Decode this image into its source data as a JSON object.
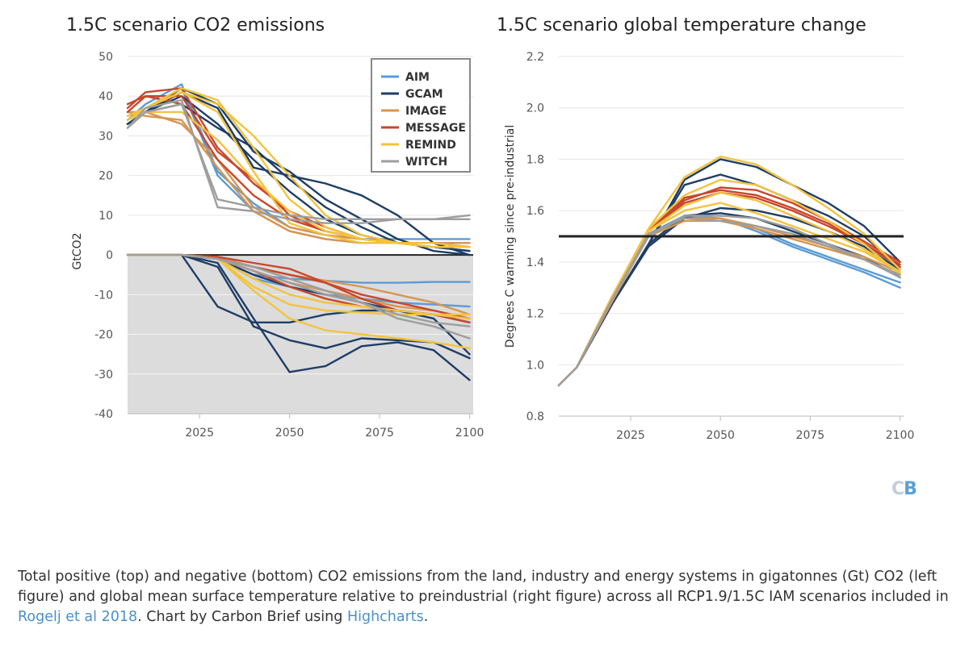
{
  "chart_data": [
    {
      "type": "line",
      "title": "1.5C scenario CO2 emissions",
      "xlabel": "",
      "ylabel": "GtCO2",
      "xlim": [
        2005,
        2101
      ],
      "ylim": [
        -40,
        50
      ],
      "xticks": [
        2025,
        2050,
        2075,
        2100
      ],
      "yticks": [
        50,
        40,
        30,
        20,
        10,
        0,
        -10,
        -20,
        -30,
        -40
      ],
      "grid": true,
      "legend": "top-right",
      "legend_items": [
        {
          "name": "AIM",
          "color": "#5b9bd5"
        },
        {
          "name": "GCAM",
          "color": "#1f3e66"
        },
        {
          "name": "IMAGE",
          "color": "#d89550"
        },
        {
          "name": "MESSAGE",
          "color": "#c8472d"
        },
        {
          "name": "REMIND",
          "color": "#f3c33e"
        },
        {
          "name": "WITCH",
          "color": "#9e9e9e"
        }
      ],
      "x": [
        2005,
        2010,
        2020,
        2030,
        2040,
        2050,
        2060,
        2070,
        2080,
        2090,
        2100
      ],
      "series": [
        {
          "model": "AIM",
          "color": "#5b9bd5",
          "values": [
            34,
            38,
            43,
            21,
            13,
            7,
            5,
            4,
            4,
            4,
            4
          ]
        },
        {
          "model": "AIM",
          "color": "#5b9bd5",
          "values": [
            34,
            37,
            42,
            20,
            11,
            6,
            4,
            3,
            3,
            3,
            3
          ]
        },
        {
          "model": "GCAM",
          "color": "#1f3e66",
          "values": [
            33,
            36,
            41,
            37,
            22,
            20,
            18,
            15,
            10,
            3,
            0
          ]
        },
        {
          "model": "GCAM",
          "color": "#1f3e66",
          "values": [
            33,
            36,
            42,
            38,
            26,
            21,
            14,
            9,
            4,
            1,
            0
          ]
        },
        {
          "model": "GCAM",
          "color": "#1f3e66",
          "values": [
            33,
            36,
            38,
            32,
            27,
            19,
            12,
            7,
            3,
            2,
            1
          ]
        },
        {
          "model": "GCAM",
          "color": "#1f3e66",
          "values": [
            33,
            36,
            40,
            33,
            24,
            16,
            9,
            5,
            3,
            2,
            1
          ]
        },
        {
          "model": "IMAGE",
          "color": "#d89550",
          "values": [
            36,
            36,
            33,
            24,
            12,
            7,
            5,
            4,
            3,
            3,
            3
          ]
        },
        {
          "model": "IMAGE",
          "color": "#d89550",
          "values": [
            36,
            35,
            34,
            22,
            11,
            6,
            4,
            3,
            3,
            3,
            2
          ]
        },
        {
          "model": "MESSAGE",
          "color": "#c8472d",
          "values": [
            38,
            40,
            40,
            26,
            19,
            10,
            6,
            4,
            3,
            2,
            2
          ]
        },
        {
          "model": "MESSAGE",
          "color": "#c8472d",
          "values": [
            37,
            41,
            42,
            27,
            18,
            11,
            7,
            4,
            3,
            3,
            2
          ]
        },
        {
          "model": "MESSAGE",
          "color": "#c8472d",
          "values": [
            36,
            40,
            38,
            24,
            15,
            9,
            6,
            4,
            3,
            3,
            2
          ]
        },
        {
          "model": "REMIND",
          "color": "#f3c33e",
          "values": [
            35,
            37,
            42,
            39,
            27,
            14,
            7,
            4,
            3,
            2,
            2
          ]
        },
        {
          "model": "REMIND",
          "color": "#f3c33e",
          "values": [
            35,
            37,
            41,
            38,
            30,
            20,
            10,
            5,
            3,
            2,
            2
          ]
        },
        {
          "model": "REMIND",
          "color": "#f3c33e",
          "values": [
            34,
            36,
            36,
            29,
            19,
            11,
            6,
            4,
            3,
            3,
            2
          ]
        },
        {
          "model": "REMIND",
          "color": "#f3c33e",
          "values": [
            34,
            37,
            41,
            36,
            21,
            8,
            5,
            3,
            3,
            2,
            2
          ]
        },
        {
          "model": "WITCH",
          "color": "#9e9e9e",
          "values": [
            32,
            37,
            39,
            12,
            11,
            9,
            8,
            8,
            9,
            9,
            9
          ]
        },
        {
          "model": "WITCH",
          "color": "#9e9e9e",
          "values": [
            32,
            36,
            38,
            14,
            12,
            10,
            9,
            9,
            9,
            9,
            10
          ]
        },
        {
          "model": "AIM",
          "color": "#5b9bd5",
          "values": [
            0,
            0,
            0,
            -1,
            -5,
            -6,
            -6.5,
            -7,
            -7,
            -6.8,
            -6.8
          ]
        },
        {
          "model": "AIM",
          "color": "#5b9bd5",
          "values": [
            0,
            0,
            0,
            -1,
            -6,
            -8,
            -10,
            -11,
            -12,
            -12.5,
            -13
          ]
        },
        {
          "model": "GCAM",
          "color": "#1f3e66",
          "values": [
            0,
            0,
            0,
            -13,
            -17,
            -17,
            -15,
            -14,
            -14,
            -16,
            -25
          ]
        },
        {
          "model": "GCAM",
          "color": "#1f3e66",
          "values": [
            0,
            0,
            0,
            -2,
            -16,
            -29.5,
            -28,
            -23,
            -22,
            -24,
            -31.5
          ]
        },
        {
          "model": "GCAM",
          "color": "#1f3e66",
          "values": [
            0,
            0,
            0,
            -3,
            -18,
            -21.5,
            -23.5,
            -21,
            -21.5,
            -22,
            -26
          ]
        },
        {
          "model": "GCAM",
          "color": "#1f3e66",
          "values": [
            0,
            0,
            0,
            -1,
            -5,
            -8,
            -10,
            -12,
            -14,
            -15,
            -17
          ]
        },
        {
          "model": "IMAGE",
          "color": "#d89550",
          "values": [
            0,
            0,
            0,
            -0.5,
            -3,
            -5,
            -6.5,
            -8,
            -10,
            -12,
            -15
          ]
        },
        {
          "model": "IMAGE",
          "color": "#d89550",
          "values": [
            0,
            0,
            0,
            -1,
            -4,
            -7,
            -9,
            -11,
            -13,
            -14,
            -16
          ]
        },
        {
          "model": "MESSAGE",
          "color": "#c8472d",
          "values": [
            0,
            0,
            0,
            -0.5,
            -2,
            -3.5,
            -7,
            -11,
            -14,
            -15,
            -16
          ]
        },
        {
          "model": "MESSAGE",
          "color": "#c8472d",
          "values": [
            0,
            0,
            0,
            -1,
            -4,
            -8,
            -11,
            -13,
            -14,
            -15,
            -17
          ]
        },
        {
          "model": "MESSAGE",
          "color": "#c8472d",
          "values": [
            0,
            0,
            0,
            -1,
            -3,
            -5,
            -7,
            -10,
            -12,
            -14,
            -16
          ]
        },
        {
          "model": "REMIND",
          "color": "#f3c33e",
          "values": [
            0,
            0,
            0,
            -1,
            -9,
            -16,
            -19,
            -20,
            -21,
            -22,
            -23.5
          ]
        },
        {
          "model": "REMIND",
          "color": "#f3c33e",
          "values": [
            0,
            0,
            0,
            -1,
            -8,
            -12.5,
            -14,
            -14.5,
            -15,
            -15,
            -15
          ]
        },
        {
          "model": "REMIND",
          "color": "#f3c33e",
          "values": [
            0,
            0,
            0,
            -1,
            -6,
            -10,
            -12,
            -13,
            -14,
            -15,
            -16
          ]
        },
        {
          "model": "WITCH",
          "color": "#9e9e9e",
          "values": [
            0,
            0,
            0,
            -1,
            -4,
            -7,
            -10,
            -12,
            -16,
            -18,
            -21
          ]
        },
        {
          "model": "WITCH",
          "color": "#9e9e9e",
          "values": [
            0,
            0,
            0,
            -1,
            -3,
            -6,
            -9,
            -12,
            -15,
            -17,
            -18
          ]
        }
      ]
    },
    {
      "type": "line",
      "title": "1.5C scenario global temperature change",
      "xlabel": "",
      "ylabel": "Degrees C warming since pre-industrial",
      "xlim": [
        2005,
        2101
      ],
      "ylim": [
        0.8,
        2.2
      ],
      "xticks": [
        2025,
        2050,
        2075,
        2100
      ],
      "yticks": [
        2.2,
        2.0,
        1.8,
        1.6,
        1.4,
        1.2,
        1.0,
        0.8
      ],
      "grid": true,
      "reference_line": 1.5,
      "reference_color": "#222222",
      "x": [
        2005,
        2010,
        2020,
        2030,
        2040,
        2050,
        2060,
        2070,
        2080,
        2090,
        2100
      ],
      "series": [
        {
          "model": "AIM",
          "color": "#5b9bd5",
          "values": [
            0.92,
            0.99,
            1.26,
            1.5,
            1.57,
            1.57,
            1.52,
            1.46,
            1.41,
            1.36,
            1.3
          ]
        },
        {
          "model": "AIM",
          "color": "#5b9bd5",
          "values": [
            0.92,
            0.99,
            1.26,
            1.51,
            1.58,
            1.57,
            1.53,
            1.47,
            1.42,
            1.37,
            1.32
          ]
        },
        {
          "model": "GCAM",
          "color": "#1f3e66",
          "values": [
            0.92,
            0.99,
            1.24,
            1.47,
            1.72,
            1.8,
            1.77,
            1.7,
            1.63,
            1.54,
            1.4
          ]
        },
        {
          "model": "GCAM",
          "color": "#1f3e66",
          "values": [
            0.92,
            0.99,
            1.24,
            1.47,
            1.7,
            1.74,
            1.7,
            1.64,
            1.58,
            1.5,
            1.38
          ]
        },
        {
          "model": "GCAM",
          "color": "#1f3e66",
          "values": [
            0.92,
            0.99,
            1.24,
            1.46,
            1.57,
            1.61,
            1.6,
            1.57,
            1.52,
            1.46,
            1.37
          ]
        },
        {
          "model": "GCAM",
          "color": "#1f3e66",
          "values": [
            0.92,
            0.99,
            1.24,
            1.47,
            1.58,
            1.59,
            1.57,
            1.52,
            1.47,
            1.42,
            1.34
          ]
        },
        {
          "model": "IMAGE",
          "color": "#d89550",
          "values": [
            0.92,
            0.99,
            1.25,
            1.5,
            1.56,
            1.56,
            1.53,
            1.49,
            1.45,
            1.41,
            1.35
          ]
        },
        {
          "model": "IMAGE",
          "color": "#d89550",
          "values": [
            0.92,
            0.99,
            1.25,
            1.51,
            1.57,
            1.57,
            1.54,
            1.5,
            1.46,
            1.42,
            1.36
          ]
        },
        {
          "model": "MESSAGE",
          "color": "#c8472d",
          "values": [
            0.92,
            0.99,
            1.27,
            1.52,
            1.64,
            1.69,
            1.68,
            1.63,
            1.56,
            1.48,
            1.4
          ]
        },
        {
          "model": "MESSAGE",
          "color": "#c8472d",
          "values": [
            0.92,
            0.99,
            1.27,
            1.52,
            1.65,
            1.68,
            1.66,
            1.61,
            1.55,
            1.47,
            1.38
          ]
        },
        {
          "model": "MESSAGE",
          "color": "#c8472d",
          "values": [
            0.92,
            0.99,
            1.27,
            1.52,
            1.63,
            1.67,
            1.65,
            1.6,
            1.54,
            1.47,
            1.39
          ]
        },
        {
          "model": "REMIND",
          "color": "#f3c33e",
          "values": [
            0.92,
            0.99,
            1.27,
            1.53,
            1.73,
            1.81,
            1.78,
            1.7,
            1.61,
            1.51,
            1.37
          ]
        },
        {
          "model": "REMIND",
          "color": "#f3c33e",
          "values": [
            0.92,
            0.99,
            1.27,
            1.53,
            1.66,
            1.72,
            1.7,
            1.64,
            1.56,
            1.47,
            1.35
          ]
        },
        {
          "model": "REMIND",
          "color": "#f3c33e",
          "values": [
            0.92,
            0.99,
            1.27,
            1.52,
            1.62,
            1.67,
            1.64,
            1.58,
            1.52,
            1.45,
            1.36
          ]
        },
        {
          "model": "REMIND",
          "color": "#f3c33e",
          "values": [
            0.92,
            0.99,
            1.27,
            1.52,
            1.6,
            1.63,
            1.59,
            1.54,
            1.49,
            1.44,
            1.36
          ]
        },
        {
          "model": "WITCH",
          "color": "#9e9e9e",
          "values": [
            0.92,
            0.99,
            1.26,
            1.5,
            1.58,
            1.58,
            1.57,
            1.53,
            1.47,
            1.41,
            1.34
          ]
        },
        {
          "model": "WITCH",
          "color": "#9e9e9e",
          "values": [
            0.92,
            0.99,
            1.26,
            1.51,
            1.57,
            1.56,
            1.54,
            1.51,
            1.46,
            1.41,
            1.35
          ]
        }
      ]
    }
  ],
  "logo": {
    "text_left": "C",
    "text_right": "B"
  },
  "caption": {
    "part1": "Total positive (top) and negative (bottom) CO2 emissions from the land, industry and energy systems in gigatonnes (Gt) CO2 (left figure) and global mean surface temperature relative to preindustrial (right figure) across all RCP1.9/1.5C IAM scenarios included in ",
    "link1": "Rogelj et al 2018",
    "part2": ". Chart by Carbon Brief using ",
    "link2": "Highcharts",
    "part3": "."
  }
}
